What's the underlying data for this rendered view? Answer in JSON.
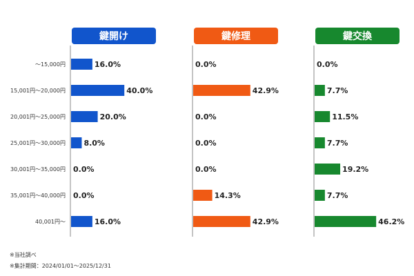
{
  "chart_data": {
    "type": "bar",
    "categories": [
      "〜15,000円",
      "15,001円〜20,000円",
      "20,001円〜25,000円",
      "25,001円〜30,000円",
      "30,001円〜35,000円",
      "35,001円〜40,000円",
      "40,001円〜"
    ],
    "series": [
      {
        "name": "鍵開け",
        "color": "#1155cc",
        "values": [
          16.0,
          40.0,
          20.0,
          8.0,
          0.0,
          0.0,
          16.0
        ],
        "labels": [
          "16.0%",
          "40.0%",
          "20.0%",
          "8.0%",
          "0.0%",
          "0.0%",
          "16.0%"
        ]
      },
      {
        "name": "鍵修理",
        "color": "#f05a14",
        "values": [
          0.0,
          42.9,
          0.0,
          0.0,
          0.0,
          14.3,
          42.9
        ],
        "labels": [
          "0.0%",
          "42.9%",
          "0.0%",
          "0.0%",
          "0.0%",
          "14.3%",
          "42.9%"
        ]
      },
      {
        "name": "鍵交換",
        "color": "#17882e",
        "values": [
          0.0,
          7.7,
          11.5,
          7.7,
          19.2,
          7.7,
          46.2
        ],
        "labels": [
          "0.0%",
          "7.7%",
          "11.5%",
          "7.7%",
          "19.2%",
          "7.7%",
          "46.2%"
        ]
      }
    ],
    "orientation": "horizontal",
    "xlim": [
      0,
      100
    ],
    "grid": false
  },
  "footnotes": {
    "line1": "※当社調べ",
    "line2": "※集計期間：2024/01/01〜2025/12/31"
  }
}
